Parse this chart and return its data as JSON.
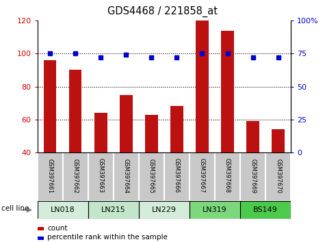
{
  "title": "GDS4468 / 221858_at",
  "samples": [
    "GSM397661",
    "GSM397662",
    "GSM397663",
    "GSM397664",
    "GSM397665",
    "GSM397666",
    "GSM397667",
    "GSM397668",
    "GSM397669",
    "GSM397670"
  ],
  "counts": [
    96,
    90,
    64,
    75,
    63,
    68,
    120,
    114,
    59,
    54
  ],
  "pct_right_vals": [
    75,
    75,
    72,
    74,
    72,
    72,
    75,
    75,
    72,
    72
  ],
  "cell_lines": [
    {
      "label": "LN018",
      "samples": [
        0,
        1
      ],
      "color": "#d4edda"
    },
    {
      "label": "LN215",
      "samples": [
        2,
        3
      ],
      "color": "#c3e6cb"
    },
    {
      "label": "LN229",
      "samples": [
        4,
        5
      ],
      "color": "#d4edda"
    },
    {
      "label": "LN319",
      "samples": [
        6,
        7
      ],
      "color": "#7dd87d"
    },
    {
      "label": "BS149",
      "samples": [
        8,
        9
      ],
      "color": "#4cca4c"
    }
  ],
  "ylim_left": [
    40,
    120
  ],
  "ylim_right": [
    0,
    100
  ],
  "yticks_left": [
    40,
    60,
    80,
    100,
    120
  ],
  "yticks_right": [
    0,
    25,
    50,
    75,
    100
  ],
  "hgrid_at": [
    60,
    80,
    100
  ],
  "bar_color": "#bb1111",
  "dot_color": "#0000cc",
  "bar_width": 0.5,
  "background_color": "#ffffff",
  "tick_label_color_left": "#cc0000",
  "tick_label_color_right": "#0000cc",
  "legend_count_color": "#cc0000",
  "legend_pct_color": "#0000cc",
  "sample_bg_color": "#c8c8c8",
  "sample_divider_color": "#ffffff"
}
